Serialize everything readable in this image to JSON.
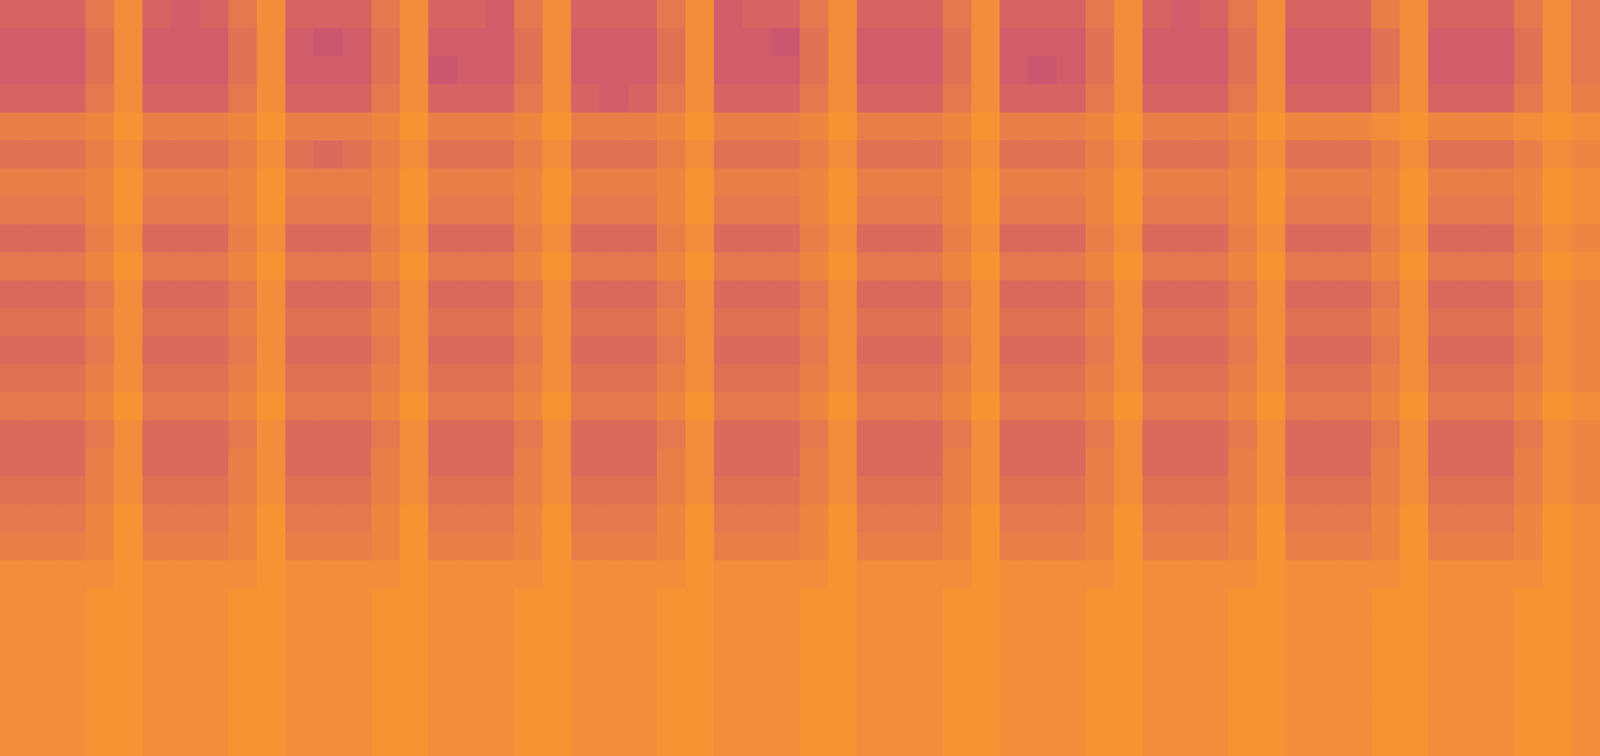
{
  "chart_data": {
    "type": "heatmap",
    "tick_labels": false,
    "grid": false,
    "cells": [
      [
        2,
        2,
        2,
        5,
        8,
        2,
        1,
        2,
        5,
        8,
        2,
        2,
        2,
        5,
        8,
        2,
        2,
        1,
        5,
        8,
        2,
        2,
        2,
        5,
        8,
        1,
        2,
        2,
        5,
        8,
        2,
        2,
        2,
        5,
        8,
        2,
        2,
        2,
        5,
        8,
        2,
        1,
        2,
        5,
        8,
        2,
        2,
        2,
        6,
        8,
        2,
        2,
        2,
        5,
        8,
        5
      ],
      [
        1,
        1,
        1,
        4,
        8,
        1,
        1,
        1,
        4,
        8,
        1,
        0,
        1,
        4,
        8,
        1,
        1,
        1,
        4,
        8,
        1,
        1,
        1,
        4,
        8,
        1,
        1,
        0,
        4,
        8,
        1,
        1,
        1,
        4,
        8,
        1,
        1,
        1,
        4,
        8,
        1,
        1,
        1,
        4,
        8,
        1,
        1,
        1,
        4,
        8,
        1,
        1,
        1,
        4,
        8,
        5
      ],
      [
        1,
        1,
        1,
        4,
        8,
        1,
        1,
        1,
        4,
        8,
        1,
        1,
        1,
        4,
        8,
        0,
        1,
        1,
        4,
        8,
        1,
        1,
        1,
        4,
        8,
        1,
        1,
        1,
        4,
        8,
        1,
        1,
        1,
        4,
        8,
        1,
        0,
        1,
        4,
        8,
        1,
        1,
        1,
        4,
        8,
        1,
        1,
        1,
        4,
        8,
        1,
        1,
        1,
        4,
        8,
        5
      ],
      [
        2,
        2,
        2,
        5,
        8,
        2,
        2,
        2,
        5,
        8,
        2,
        2,
        2,
        5,
        8,
        2,
        2,
        2,
        5,
        8,
        2,
        1,
        2,
        5,
        8,
        2,
        2,
        2,
        5,
        8,
        2,
        2,
        2,
        5,
        8,
        2,
        2,
        2,
        5,
        8,
        2,
        2,
        2,
        5,
        8,
        2,
        2,
        2,
        5,
        8,
        2,
        2,
        2,
        5,
        8,
        6
      ],
      [
        6,
        6,
        6,
        7,
        9,
        6,
        6,
        6,
        7,
        9,
        6,
        6,
        6,
        7,
        9,
        6,
        6,
        6,
        7,
        9,
        6,
        6,
        6,
        7,
        9,
        6,
        6,
        6,
        7,
        9,
        6,
        6,
        6,
        7,
        9,
        6,
        6,
        6,
        7,
        9,
        6,
        6,
        6,
        7,
        9,
        7,
        7,
        7,
        8,
        9,
        7,
        7,
        7,
        8,
        9,
        8
      ],
      [
        4,
        4,
        4,
        6,
        8,
        4,
        4,
        4,
        6,
        8,
        4,
        3,
        4,
        6,
        8,
        4,
        4,
        4,
        6,
        8,
        4,
        4,
        4,
        6,
        8,
        4,
        4,
        4,
        6,
        8,
        4,
        4,
        4,
        6,
        8,
        4,
        4,
        4,
        6,
        8,
        4,
        4,
        4,
        6,
        8,
        4,
        4,
        4,
        6,
        8,
        4,
        4,
        4,
        6,
        8,
        7
      ],
      [
        6,
        6,
        6,
        7,
        9,
        6,
        6,
        6,
        7,
        9,
        6,
        6,
        6,
        7,
        9,
        6,
        6,
        6,
        7,
        9,
        6,
        6,
        6,
        7,
        9,
        6,
        6,
        6,
        7,
        9,
        6,
        6,
        6,
        7,
        9,
        6,
        6,
        6,
        7,
        9,
        6,
        6,
        6,
        7,
        9,
        6,
        6,
        6,
        7,
        9,
        6,
        6,
        6,
        7,
        9,
        8
      ],
      [
        5,
        5,
        5,
        7,
        9,
        5,
        5,
        5,
        7,
        9,
        5,
        5,
        5,
        7,
        9,
        5,
        5,
        5,
        7,
        9,
        5,
        5,
        5,
        7,
        9,
        5,
        5,
        5,
        7,
        9,
        5,
        5,
        5,
        7,
        9,
        5,
        5,
        5,
        7,
        9,
        5,
        5,
        5,
        7,
        9,
        5,
        5,
        5,
        7,
        9,
        5,
        5,
        5,
        7,
        9,
        8
      ],
      [
        3,
        3,
        3,
        6,
        8,
        3,
        3,
        3,
        6,
        8,
        3,
        3,
        3,
        6,
        8,
        3,
        3,
        3,
        6,
        8,
        3,
        3,
        3,
        6,
        8,
        3,
        3,
        3,
        6,
        8,
        3,
        3,
        3,
        6,
        8,
        3,
        3,
        3,
        6,
        8,
        3,
        3,
        3,
        6,
        8,
        3,
        3,
        3,
        6,
        8,
        3,
        3,
        3,
        6,
        8,
        7
      ],
      [
        5,
        5,
        5,
        7,
        9,
        5,
        5,
        5,
        7,
        9,
        5,
        5,
        5,
        7,
        9,
        5,
        5,
        5,
        7,
        9,
        5,
        5,
        5,
        7,
        9,
        5,
        5,
        5,
        7,
        9,
        5,
        5,
        5,
        7,
        9,
        5,
        5,
        5,
        7,
        9,
        5,
        5,
        5,
        7,
        9,
        5,
        5,
        5,
        7,
        9,
        5,
        5,
        5,
        7,
        9,
        8
      ],
      [
        3,
        3,
        3,
        5,
        8,
        3,
        3,
        3,
        5,
        8,
        3,
        3,
        3,
        5,
        8,
        3,
        3,
        3,
        5,
        8,
        3,
        3,
        3,
        5,
        8,
        3,
        3,
        3,
        5,
        8,
        3,
        3,
        3,
        5,
        8,
        3,
        3,
        3,
        5,
        8,
        3,
        3,
        3,
        5,
        8,
        3,
        3,
        3,
        5,
        8,
        3,
        3,
        3,
        5,
        8,
        7
      ],
      [
        4,
        4,
        4,
        6,
        8,
        4,
        4,
        4,
        6,
        8,
        4,
        4,
        4,
        6,
        8,
        4,
        4,
        4,
        6,
        8,
        4,
        4,
        4,
        6,
        8,
        4,
        4,
        4,
        6,
        8,
        4,
        4,
        4,
        6,
        8,
        4,
        4,
        4,
        6,
        8,
        4,
        4,
        4,
        6,
        8,
        4,
        4,
        4,
        6,
        8,
        4,
        4,
        4,
        6,
        8,
        7
      ],
      [
        3,
        3,
        3,
        5,
        8,
        3,
        3,
        3,
        5,
        8,
        3,
        3,
        3,
        5,
        8,
        3,
        3,
        3,
        5,
        8,
        3,
        3,
        3,
        5,
        8,
        3,
        3,
        3,
        5,
        8,
        3,
        3,
        3,
        5,
        8,
        3,
        3,
        3,
        5,
        8,
        3,
        3,
        3,
        5,
        8,
        3,
        3,
        3,
        5,
        8,
        3,
        3,
        3,
        5,
        8,
        7
      ],
      [
        4,
        4,
        4,
        6,
        8,
        4,
        4,
        4,
        6,
        8,
        4,
        4,
        4,
        6,
        8,
        4,
        4,
        4,
        6,
        8,
        4,
        4,
        4,
        6,
        8,
        4,
        4,
        4,
        6,
        8,
        4,
        4,
        4,
        6,
        8,
        4,
        4,
        4,
        6,
        8,
        4,
        4,
        4,
        6,
        8,
        4,
        4,
        4,
        6,
        8,
        4,
        4,
        4,
        6,
        8,
        7
      ],
      [
        5,
        5,
        5,
        7,
        9,
        5,
        5,
        5,
        7,
        9,
        5,
        5,
        5,
        7,
        9,
        5,
        5,
        5,
        7,
        9,
        5,
        5,
        5,
        7,
        9,
        5,
        5,
        5,
        7,
        9,
        5,
        5,
        5,
        7,
        9,
        5,
        5,
        5,
        7,
        9,
        5,
        5,
        5,
        7,
        9,
        5,
        5,
        5,
        7,
        9,
        5,
        5,
        5,
        7,
        9,
        8
      ],
      [
        3,
        3,
        3,
        5,
        8,
        3,
        3,
        3,
        5,
        8,
        3,
        3,
        3,
        5,
        8,
        3,
        3,
        3,
        5,
        8,
        3,
        3,
        3,
        5,
        8,
        3,
        3,
        3,
        5,
        8,
        3,
        3,
        3,
        5,
        8,
        3,
        3,
        3,
        5,
        8,
        3,
        3,
        3,
        5,
        8,
        3,
        3,
        3,
        5,
        8,
        3,
        3,
        3,
        5,
        8,
        7
      ],
      [
        3,
        3,
        3,
        6,
        8,
        3,
        3,
        3,
        6,
        8,
        3,
        3,
        3,
        6,
        8,
        3,
        3,
        3,
        6,
        8,
        3,
        3,
        3,
        6,
        8,
        3,
        3,
        3,
        6,
        8,
        3,
        3,
        3,
        6,
        8,
        3,
        3,
        3,
        6,
        8,
        3,
        3,
        3,
        6,
        8,
        3,
        3,
        3,
        6,
        8,
        3,
        3,
        3,
        6,
        8,
        7
      ],
      [
        4,
        4,
        4,
        6,
        8,
        4,
        4,
        4,
        6,
        8,
        4,
        4,
        4,
        6,
        8,
        4,
        4,
        4,
        6,
        8,
        4,
        4,
        4,
        6,
        8,
        4,
        4,
        4,
        6,
        8,
        4,
        4,
        4,
        6,
        8,
        4,
        4,
        4,
        6,
        8,
        4,
        4,
        4,
        6,
        8,
        4,
        4,
        4,
        6,
        8,
        4,
        4,
        4,
        6,
        8,
        7
      ],
      [
        5,
        5,
        5,
        7,
        9,
        5,
        5,
        5,
        7,
        9,
        5,
        5,
        5,
        7,
        9,
        5,
        5,
        5,
        7,
        9,
        5,
        5,
        5,
        7,
        9,
        5,
        5,
        5,
        7,
        9,
        5,
        5,
        5,
        7,
        9,
        5,
        5,
        5,
        7,
        9,
        5,
        5,
        5,
        7,
        9,
        5,
        5,
        5,
        7,
        9,
        5,
        5,
        5,
        7,
        9,
        8
      ],
      [
        6,
        6,
        6,
        7,
        9,
        6,
        6,
        6,
        7,
        9,
        6,
        6,
        6,
        7,
        9,
        6,
        6,
        6,
        7,
        9,
        6,
        6,
        6,
        7,
        9,
        6,
        6,
        6,
        7,
        9,
        6,
        6,
        6,
        7,
        9,
        6,
        6,
        6,
        7,
        9,
        6,
        6,
        6,
        7,
        9,
        6,
        6,
        6,
        7,
        9,
        6,
        6,
        6,
        7,
        9,
        8
      ],
      [
        8,
        8,
        8,
        8,
        9,
        8,
        8,
        8,
        8,
        9,
        8,
        8,
        8,
        8,
        9,
        8,
        8,
        8,
        8,
        9,
        8,
        8,
        8,
        8,
        9,
        8,
        8,
        8,
        8,
        9,
        8,
        8,
        8,
        8,
        9,
        8,
        8,
        8,
        8,
        9,
        8,
        8,
        8,
        8,
        9,
        8,
        8,
        8,
        8,
        9,
        8,
        8,
        8,
        8,
        9,
        8
      ],
      [
        8,
        8,
        8,
        9,
        9,
        8,
        8,
        8,
        9,
        9,
        8,
        8,
        8,
        9,
        9,
        8,
        8,
        8,
        9,
        9,
        8,
        8,
        8,
        9,
        9,
        8,
        8,
        8,
        9,
        9,
        8,
        8,
        8,
        9,
        9,
        8,
        8,
        8,
        9,
        9,
        8,
        8,
        8,
        9,
        9,
        8,
        8,
        8,
        9,
        9,
        8,
        8,
        8,
        9,
        9,
        8
      ],
      [
        8,
        8,
        8,
        9,
        9,
        8,
        8,
        8,
        9,
        9,
        8,
        8,
        8,
        9,
        9,
        8,
        8,
        8,
        9,
        9,
        8,
        8,
        8,
        9,
        9,
        8,
        8,
        8,
        9,
        9,
        8,
        8,
        8,
        9,
        9,
        8,
        8,
        8,
        9,
        9,
        8,
        8,
        8,
        9,
        9,
        8,
        8,
        8,
        9,
        9,
        8,
        8,
        8,
        9,
        9,
        8
      ],
      [
        8,
        8,
        8,
        9,
        9,
        8,
        8,
        8,
        9,
        9,
        8,
        8,
        8,
        9,
        9,
        8,
        8,
        8,
        9,
        9,
        8,
        8,
        8,
        9,
        9,
        8,
        8,
        8,
        9,
        9,
        8,
        8,
        8,
        9,
        9,
        8,
        8,
        8,
        9,
        9,
        8,
        8,
        8,
        9,
        9,
        8,
        8,
        8,
        9,
        9,
        8,
        8,
        8,
        9,
        9,
        8
      ],
      [
        8,
        8,
        8,
        9,
        9,
        8,
        8,
        8,
        9,
        9,
        8,
        8,
        8,
        9,
        9,
        8,
        8,
        8,
        9,
        9,
        8,
        8,
        8,
        9,
        9,
        8,
        8,
        8,
        9,
        9,
        8,
        8,
        8,
        9,
        9,
        8,
        8,
        8,
        9,
        9,
        8,
        8,
        8,
        9,
        9,
        8,
        8,
        8,
        9,
        9,
        8,
        8,
        8,
        9,
        9,
        8
      ],
      [
        8,
        8,
        8,
        9,
        9,
        8,
        8,
        8,
        9,
        9,
        8,
        8,
        8,
        9,
        9,
        8,
        8,
        8,
        9,
        9,
        8,
        8,
        8,
        9,
        9,
        8,
        8,
        8,
        9,
        9,
        8,
        8,
        8,
        9,
        9,
        8,
        8,
        8,
        9,
        9,
        8,
        8,
        8,
        9,
        9,
        8,
        8,
        8,
        9,
        9,
        8,
        8,
        8,
        9,
        9,
        8
      ],
      [
        8,
        8,
        8,
        9,
        9,
        8,
        8,
        8,
        9,
        9,
        8,
        8,
        8,
        9,
        9,
        8,
        8,
        8,
        9,
        9,
        8,
        8,
        8,
        9,
        9,
        8,
        8,
        8,
        9,
        9,
        8,
        8,
        8,
        9,
        9,
        8,
        8,
        8,
        9,
        9,
        8,
        8,
        8,
        9,
        9,
        8,
        8,
        8,
        9,
        9,
        8,
        8,
        8,
        9,
        9,
        8
      ]
    ]
  }
}
